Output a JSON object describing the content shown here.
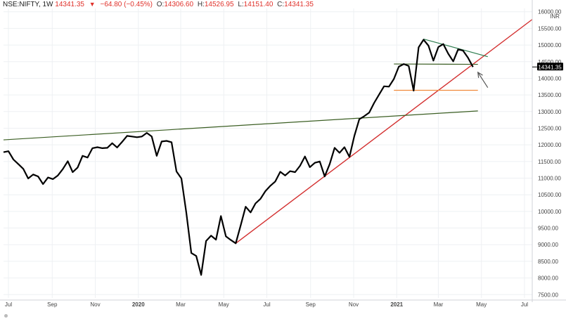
{
  "header": {
    "symbol": "NSE:NIFTY, 1W",
    "last": "14341.35",
    "change": "−64.80 (−0.45%)",
    "open_label": "O:",
    "open": "14306.60",
    "high_label": "H:",
    "high": "14526.95",
    "low_label": "L:",
    "low": "14151.40",
    "close_label": "C:",
    "close": "14341.35"
  },
  "price_label": "14341.35",
  "currency_label": "INR",
  "colors": {
    "price_line": "#000000",
    "support_trend": "#d32f2f",
    "long_trend": "#3b5e23",
    "upper_trend": "#2e7d4f",
    "horizontal_green": "#3b5e23",
    "horizontal_orange": "#f08a3c",
    "price_badge_bg": "#000000"
  },
  "chart_data": {
    "type": "line",
    "title": "",
    "xlabel": "",
    "ylabel": "",
    "ylim": [
      7400,
      16100
    ],
    "xlim": [
      "2019-06-24",
      "2021-07-12"
    ],
    "y_ticks": [
      7500,
      8000,
      8500,
      9000,
      9500,
      10000,
      10500,
      11000,
      11500,
      12000,
      12500,
      13000,
      13500,
      14000,
      14500,
      15000,
      15500,
      16000
    ],
    "y_tick_labels": [
      "7500.00",
      "8000.00",
      "8500.00",
      "9000.00",
      "9500.00",
      "10000.00",
      "10500.00",
      "11000.00",
      "11500.00",
      "12000.00",
      "12500.00",
      "13000.00",
      "13500.00",
      "14000.00",
      "14500.00",
      "15000.00",
      "15500.00",
      "16000.00"
    ],
    "x_ticks": [
      {
        "date": "2019-07-01",
        "label": "Jul",
        "bold": false
      },
      {
        "date": "2019-09-01",
        "label": "Sep",
        "bold": false
      },
      {
        "date": "2019-11-01",
        "label": "Nov",
        "bold": false
      },
      {
        "date": "2020-01-01",
        "label": "2020",
        "bold": true
      },
      {
        "date": "2020-03-01",
        "label": "Mar",
        "bold": false
      },
      {
        "date": "2020-05-01",
        "label": "May",
        "bold": false
      },
      {
        "date": "2020-07-01",
        "label": "Jul",
        "bold": false
      },
      {
        "date": "2020-09-01",
        "label": "Sep",
        "bold": false
      },
      {
        "date": "2020-11-01",
        "label": "Nov",
        "bold": false
      },
      {
        "date": "2021-01-01",
        "label": "2021",
        "bold": true
      },
      {
        "date": "2021-03-01",
        "label": "Mar",
        "bold": false
      },
      {
        "date": "2021-05-01",
        "label": "May",
        "bold": false
      },
      {
        "date": "2021-07-01",
        "label": "Jul",
        "bold": false
      }
    ],
    "series": [
      {
        "type": "line",
        "points": [
          [
            "2019-06-24",
            11780
          ],
          [
            "2019-07-01",
            11810
          ],
          [
            "2019-07-08",
            11560
          ],
          [
            "2019-07-15",
            11420
          ],
          [
            "2019-07-22",
            11280
          ],
          [
            "2019-07-29",
            10990
          ],
          [
            "2019-08-05",
            11110
          ],
          [
            "2019-08-12",
            11050
          ],
          [
            "2019-08-19",
            10820
          ],
          [
            "2019-08-26",
            11020
          ],
          [
            "2019-09-02",
            10970
          ],
          [
            "2019-09-09",
            11080
          ],
          [
            "2019-09-16",
            11270
          ],
          [
            "2019-09-23",
            11510
          ],
          [
            "2019-09-30",
            11180
          ],
          [
            "2019-10-07",
            11320
          ],
          [
            "2019-10-14",
            11670
          ],
          [
            "2019-10-21",
            11620
          ],
          [
            "2019-10-28",
            11900
          ],
          [
            "2019-11-04",
            11930
          ],
          [
            "2019-11-11",
            11900
          ],
          [
            "2019-11-18",
            11910
          ],
          [
            "2019-11-25",
            12050
          ],
          [
            "2019-12-02",
            11920
          ],
          [
            "2019-12-09",
            12090
          ],
          [
            "2019-12-16",
            12270
          ],
          [
            "2019-12-23",
            12250
          ],
          [
            "2019-12-30",
            12230
          ],
          [
            "2020-01-06",
            12250
          ],
          [
            "2020-01-13",
            12360
          ],
          [
            "2020-01-20",
            12250
          ],
          [
            "2020-01-27",
            11670
          ],
          [
            "2020-02-03",
            12100
          ],
          [
            "2020-02-10",
            12120
          ],
          [
            "2020-02-17",
            12080
          ],
          [
            "2020-02-24",
            11200
          ],
          [
            "2020-03-02",
            10990
          ],
          [
            "2020-03-09",
            9960
          ],
          [
            "2020-03-16",
            8750
          ],
          [
            "2020-03-23",
            8660
          ],
          [
            "2020-03-30",
            8090
          ],
          [
            "2020-04-06",
            9110
          ],
          [
            "2020-04-13",
            9270
          ],
          [
            "2020-04-20",
            9150
          ],
          [
            "2020-04-27",
            9860
          ],
          [
            "2020-05-04",
            9250
          ],
          [
            "2020-05-11",
            9140
          ],
          [
            "2020-05-18",
            9040
          ],
          [
            "2020-05-25",
            9580
          ],
          [
            "2020-06-01",
            10140
          ],
          [
            "2020-06-08",
            9970
          ],
          [
            "2020-06-15",
            10240
          ],
          [
            "2020-06-22",
            10380
          ],
          [
            "2020-06-29",
            10610
          ],
          [
            "2020-07-06",
            10770
          ],
          [
            "2020-07-13",
            10900
          ],
          [
            "2020-07-20",
            11190
          ],
          [
            "2020-07-27",
            11080
          ],
          [
            "2020-08-03",
            11210
          ],
          [
            "2020-08-10",
            11180
          ],
          [
            "2020-08-17",
            11370
          ],
          [
            "2020-08-24",
            11650
          ],
          [
            "2020-08-31",
            11330
          ],
          [
            "2020-09-07",
            11460
          ],
          [
            "2020-09-14",
            11500
          ],
          [
            "2020-09-21",
            11050
          ],
          [
            "2020-09-28",
            11420
          ],
          [
            "2020-10-05",
            11910
          ],
          [
            "2020-10-12",
            11760
          ],
          [
            "2020-10-19",
            11930
          ],
          [
            "2020-10-26",
            11640
          ],
          [
            "2020-11-02",
            12270
          ],
          [
            "2020-11-09",
            12770
          ],
          [
            "2020-11-16",
            12860
          ],
          [
            "2020-11-23",
            12970
          ],
          [
            "2020-11-30",
            13260
          ],
          [
            "2020-12-07",
            13510
          ],
          [
            "2020-12-14",
            13760
          ],
          [
            "2020-12-21",
            13750
          ],
          [
            "2020-12-28",
            13980
          ],
          [
            "2021-01-04",
            14350
          ],
          [
            "2021-01-11",
            14430
          ],
          [
            "2021-01-18",
            14370
          ],
          [
            "2021-01-25",
            13630
          ],
          [
            "2021-02-01",
            14930
          ],
          [
            "2021-02-08",
            15160
          ],
          [
            "2021-02-15",
            14980
          ],
          [
            "2021-02-22",
            14530
          ],
          [
            "2021-03-01",
            14940
          ],
          [
            "2021-03-08",
            15030
          ],
          [
            "2021-03-15",
            14740
          ],
          [
            "2021-03-22",
            14510
          ],
          [
            "2021-03-29",
            14870
          ],
          [
            "2021-04-05",
            14830
          ],
          [
            "2021-04-12",
            14620
          ],
          [
            "2021-04-19",
            14341.35
          ]
        ]
      }
    ],
    "lines": [
      {
        "kind": "support-trend",
        "from": [
          "2020-05-18",
          9040
        ],
        "to": [
          "2021-07-12",
          15770
        ]
      },
      {
        "kind": "long-trend",
        "from": [
          "2019-06-24",
          12150
        ],
        "to": [
          "2021-04-26",
          13020
        ]
      },
      {
        "kind": "upper-trend",
        "from": [
          "2021-02-08",
          15180
        ],
        "to": [
          "2021-05-10",
          14650
        ]
      },
      {
        "kind": "horizontal-green",
        "from": [
          "2020-12-28",
          14430
        ],
        "to": [
          "2021-04-26",
          14420
        ]
      },
      {
        "kind": "horizontal-orange",
        "from": [
          "2020-12-28",
          13640
        ],
        "to": [
          "2021-04-26",
          13640
        ]
      }
    ],
    "arrow": {
      "tail": [
        "2021-05-10",
        13720
      ],
      "head": [
        "2021-04-26",
        14180
      ]
    }
  }
}
